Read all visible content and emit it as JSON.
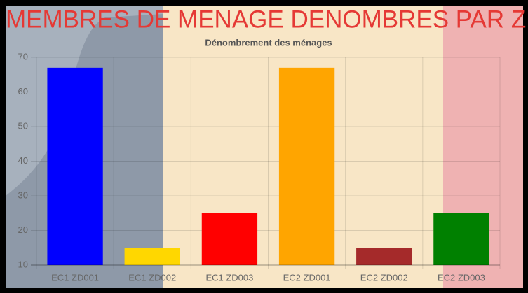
{
  "header": {
    "title": "MEMBRES DE MENAGE DENOMBRES PAR ZD"
  },
  "chart_data": {
    "type": "bar",
    "title": "Dénombrement des ménages",
    "categories": [
      "EC1 ZD001",
      "EC1 ZD002",
      "EC1 ZD003",
      "EC2 ZD001",
      "EC2 ZD002",
      "EC2 ZD003"
    ],
    "values": [
      67,
      15,
      25,
      67,
      15,
      25
    ],
    "colors": [
      "#0000ff",
      "#ffd700",
      "#ff0000",
      "#ffa500",
      "#a52a2a",
      "#008000"
    ],
    "ylim": [
      10,
      70
    ],
    "yticks": [
      10,
      20,
      30,
      40,
      50,
      60,
      70
    ],
    "grid": true
  }
}
